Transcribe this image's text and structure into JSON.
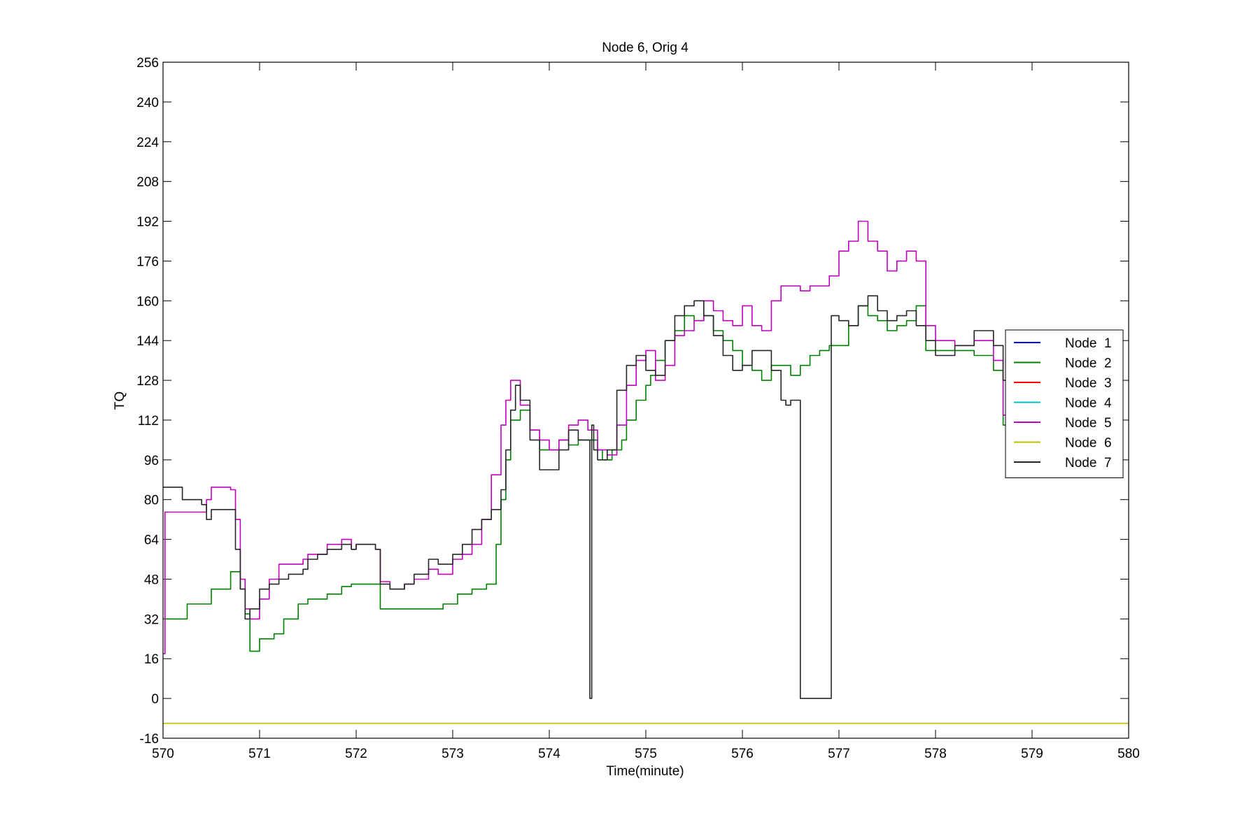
{
  "chart_data": {
    "type": "line",
    "title": "Node 6, Orig 4",
    "xlabel": "Time(minute)",
    "ylabel": "TQ",
    "xlim": [
      570,
      580
    ],
    "ylim": [
      -16,
      256
    ],
    "xticks": [
      "570",
      "571",
      "572",
      "573",
      "574",
      "575",
      "576",
      "577",
      "578",
      "579",
      "580"
    ],
    "yticks": [
      "-16",
      "0",
      "16",
      "32",
      "48",
      "64",
      "80",
      "96",
      "112",
      "128",
      "144",
      "160",
      "176",
      "192",
      "208",
      "224",
      "240",
      "256"
    ],
    "legend_position": "right",
    "series": [
      {
        "name": "Node  1",
        "color": "#0000ff",
        "x": [],
        "y": []
      },
      {
        "name": "Node  2",
        "color": "#008000",
        "x": [
          570.0,
          570.05,
          570.25,
          570.3,
          570.45,
          570.5,
          570.7,
          570.75,
          570.8,
          570.85,
          570.9,
          571.0,
          571.15,
          571.25,
          571.4,
          571.5,
          571.7,
          571.85,
          571.95,
          572.0,
          572.1,
          572.2,
          572.25,
          572.5,
          572.75,
          572.9,
          573.05,
          573.2,
          573.35,
          573.45,
          573.5,
          573.55,
          573.6,
          573.7,
          573.8,
          573.9,
          574.0,
          574.1,
          574.2,
          574.3,
          574.4,
          574.5,
          574.55,
          574.6,
          574.65,
          574.75,
          574.8,
          574.9,
          575.0,
          575.05,
          575.1,
          575.2,
          575.3,
          575.4,
          575.5,
          575.6,
          575.7,
          575.8,
          575.9,
          576.0,
          576.1,
          576.2,
          576.3,
          576.4,
          576.5,
          576.6,
          576.7,
          576.8,
          576.9,
          577.0,
          577.1,
          577.2,
          577.3,
          577.4,
          577.5,
          577.6,
          577.7,
          577.8,
          577.9,
          578.0,
          578.2,
          578.4,
          578.6,
          578.7,
          578.8,
          579.0
        ],
        "y": [
          32,
          32,
          38,
          38,
          38,
          44,
          51,
          51,
          44,
          34,
          19,
          24,
          26,
          32,
          38,
          40,
          42,
          45,
          46,
          46,
          46,
          46,
          36,
          36,
          36,
          38,
          42,
          44,
          46,
          62,
          80,
          96,
          112,
          116,
          108,
          100,
          100,
          104,
          102,
          104,
          104,
          100,
          96,
          96,
          100,
          104,
          112,
          120,
          126,
          130,
          136,
          144,
          148,
          154,
          152,
          154,
          148,
          144,
          140,
          134,
          132,
          128,
          134,
          134,
          130,
          134,
          138,
          140,
          142,
          142,
          150,
          158,
          154,
          152,
          148,
          150,
          152,
          158,
          140,
          140,
          140,
          138,
          132,
          110,
          109,
          109
        ]
      },
      {
        "name": "Node  3",
        "color": "#ff0000",
        "x": [],
        "y": []
      },
      {
        "name": "Node  4",
        "color": "#00bfbf",
        "x": [],
        "y": []
      },
      {
        "name": "Node  5",
        "color": "#bf00bf",
        "x": [
          570.0,
          570.02,
          570.1,
          570.4,
          570.45,
          570.5,
          570.7,
          570.75,
          570.8,
          570.85,
          570.9,
          571.0,
          571.1,
          571.2,
          571.3,
          571.45,
          571.5,
          571.6,
          571.7,
          571.85,
          571.95,
          572.0,
          572.1,
          572.2,
          572.25,
          572.35,
          572.5,
          572.6,
          572.75,
          572.85,
          573.0,
          573.1,
          573.2,
          573.3,
          573.4,
          573.5,
          573.55,
          573.6,
          573.65,
          573.7,
          573.8,
          573.9,
          574.0,
          574.1,
          574.2,
          574.3,
          574.4,
          574.5,
          574.6,
          574.7,
          574.8,
          574.9,
          575.0,
          575.1,
          575.2,
          575.3,
          575.4,
          575.5,
          575.6,
          575.7,
          575.8,
          575.9,
          576.0,
          576.1,
          576.2,
          576.3,
          576.4,
          576.5,
          576.6,
          576.7,
          576.8,
          576.9,
          577.0,
          577.1,
          577.2,
          577.3,
          577.4,
          577.5,
          577.6,
          577.7,
          577.8,
          577.9,
          578.0,
          578.2,
          578.4,
          578.6,
          578.7,
          578.8,
          579.0
        ],
        "y": [
          18,
          75,
          75,
          75,
          80,
          85,
          84,
          72,
          48,
          36,
          32,
          40,
          48,
          54,
          54,
          56,
          58,
          58,
          62,
          64,
          60,
          62,
          62,
          60,
          47,
          44,
          46,
          48,
          52,
          50,
          56,
          58,
          62,
          72,
          90,
          110,
          120,
          128,
          128,
          118,
          108,
          104,
          100,
          104,
          110,
          112,
          108,
          100,
          98,
          110,
          126,
          136,
          140,
          128,
          134,
          146,
          148,
          152,
          160,
          156,
          152,
          150,
          158,
          150,
          148,
          160,
          166,
          166,
          164,
          166,
          166,
          170,
          180,
          184,
          192,
          184,
          180,
          172,
          176,
          180,
          176,
          150,
          144,
          142,
          144,
          136,
          114,
          120,
          120
        ]
      },
      {
        "name": "Node  6",
        "color": "#bfbf00",
        "x": [
          570.0,
          580.0
        ],
        "y": [
          -10,
          -10
        ]
      },
      {
        "name": "Node  7",
        "color": "#262626",
        "x": [
          570.0,
          570.2,
          570.4,
          570.45,
          570.5,
          570.7,
          570.75,
          570.8,
          570.85,
          570.9,
          571.0,
          571.1,
          571.2,
          571.3,
          571.45,
          571.5,
          571.6,
          571.7,
          571.85,
          571.95,
          572.0,
          572.1,
          572.2,
          572.25,
          572.35,
          572.5,
          572.6,
          572.75,
          572.85,
          573.0,
          573.1,
          573.2,
          573.3,
          573.4,
          573.5,
          573.55,
          573.6,
          573.65,
          573.7,
          573.8,
          573.9,
          574.0,
          574.1,
          574.2,
          574.3,
          574.4,
          574.42,
          574.44,
          574.46,
          574.5,
          574.6,
          574.7,
          574.8,
          574.9,
          575.0,
          575.1,
          575.2,
          575.3,
          575.4,
          575.5,
          575.6,
          575.7,
          575.8,
          575.9,
          576.0,
          576.1,
          576.2,
          576.3,
          576.4,
          576.45,
          576.5,
          576.6,
          576.7,
          576.8,
          576.9,
          576.92,
          577.0,
          577.1,
          577.2,
          577.3,
          577.4,
          577.5,
          577.6,
          577.7,
          577.8,
          577.9,
          578.0,
          578.2,
          578.4,
          578.6,
          578.7,
          578.8,
          579.0
        ],
        "y": [
          85,
          80,
          78,
          72,
          76,
          76,
          60,
          44,
          32,
          36,
          44,
          46,
          48,
          50,
          52,
          56,
          58,
          60,
          62,
          60,
          62,
          62,
          60,
          46,
          44,
          46,
          50,
          56,
          54,
          58,
          62,
          68,
          72,
          76,
          84,
          100,
          116,
          126,
          120,
          104,
          92,
          92,
          100,
          108,
          104,
          104,
          0,
          110,
          100,
          96,
          100,
          124,
          134,
          138,
          132,
          130,
          144,
          154,
          158,
          160,
          154,
          146,
          138,
          132,
          134,
          140,
          140,
          132,
          120,
          118,
          120,
          0,
          0,
          0,
          0,
          154,
          152,
          150,
          158,
          162,
          156,
          152,
          154,
          156,
          150,
          144,
          138,
          142,
          148,
          142,
          128,
          136,
          136
        ]
      }
    ]
  }
}
